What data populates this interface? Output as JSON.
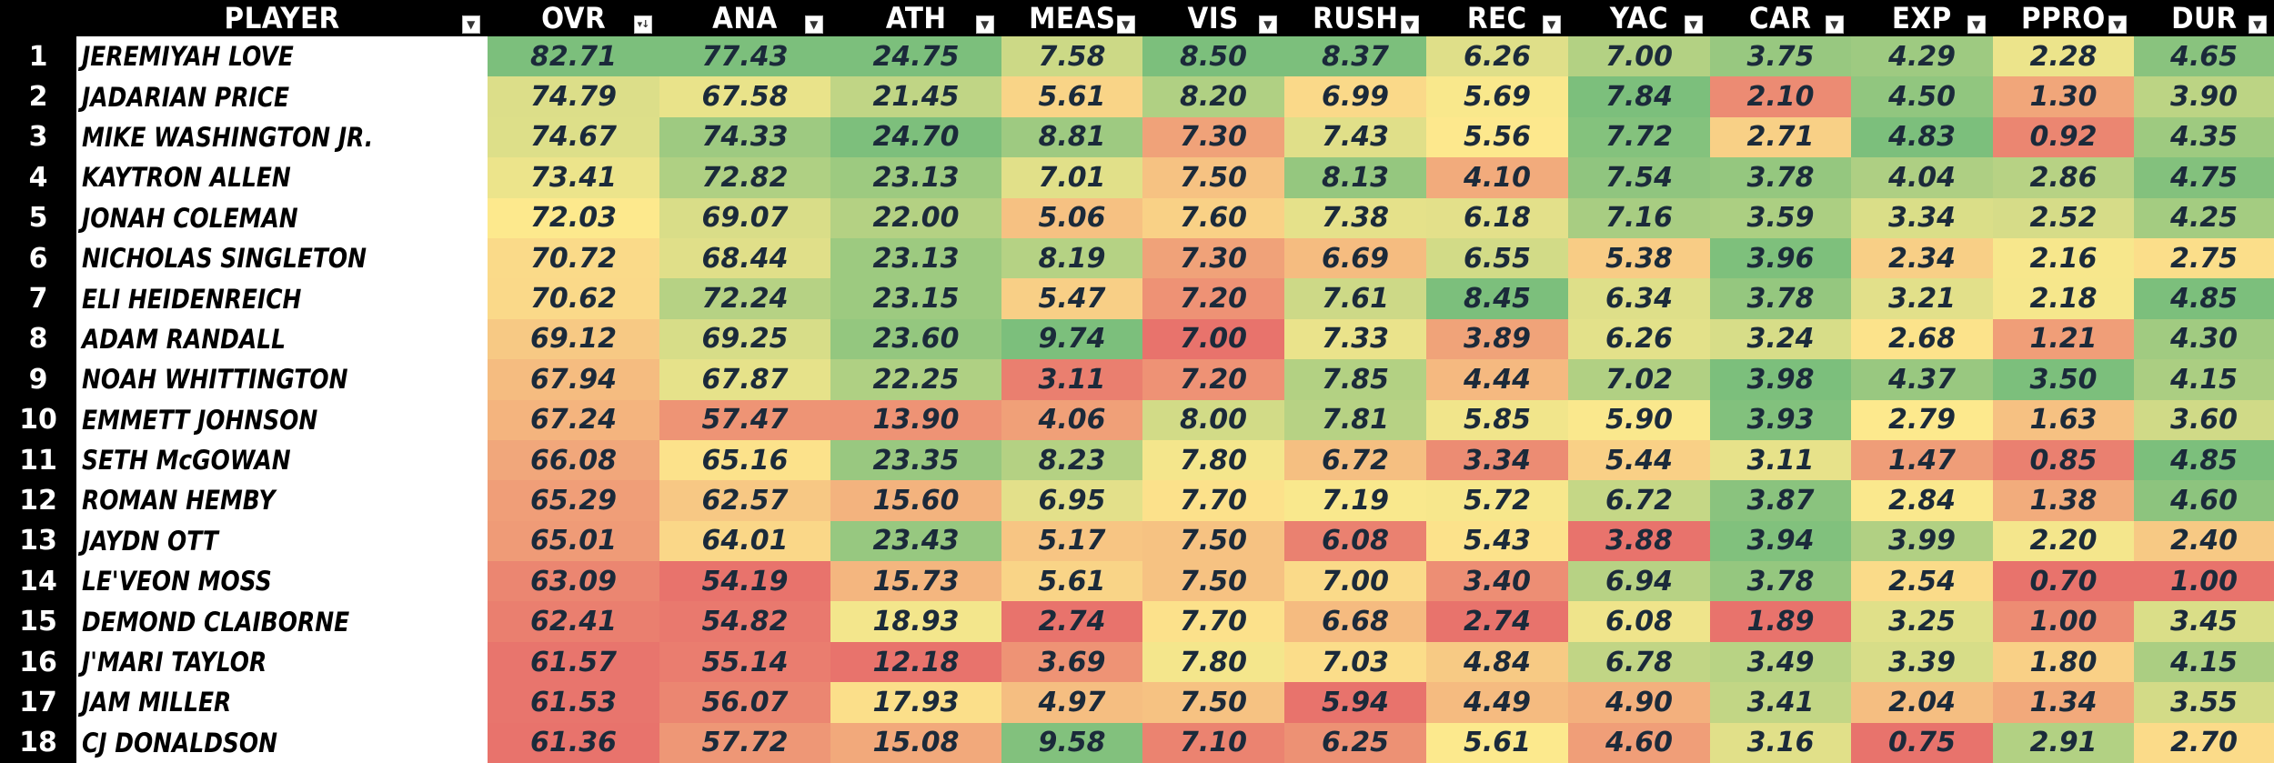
{
  "header": {
    "rank": "",
    "player": "PLAYER",
    "metrics": [
      "OVR",
      "ANA",
      "ATH",
      "MEAS",
      "VIS",
      "RUSH",
      "REC",
      "YAC",
      "CAR",
      "EXP",
      "PPRO",
      "DUR"
    ]
  },
  "filter_icons": {
    "default": "filter-dropdown-icon",
    "sorted": "sort-descending-filter-icon"
  },
  "colors": {
    "low": "#e8736c",
    "mid": "#fde98d",
    "high": "#7cbf7c",
    "header_bg": "#000000",
    "name_bg": "#ffffff"
  },
  "rows": [
    {
      "rank": "1",
      "name": "JEREMIYAH LOVE",
      "values": [
        "82.71",
        "77.43",
        "24.75",
        "7.58",
        "8.50",
        "8.37",
        "6.26",
        "7.00",
        "3.75",
        "4.29",
        "2.28",
        "4.65"
      ]
    },
    {
      "rank": "2",
      "name": "JADARIAN PRICE",
      "values": [
        "74.79",
        "67.58",
        "21.45",
        "5.61",
        "8.20",
        "6.99",
        "5.69",
        "7.84",
        "2.10",
        "4.50",
        "1.30",
        "3.90"
      ]
    },
    {
      "rank": "3",
      "name": "MIKE WASHINGTON JR.",
      "values": [
        "74.67",
        "74.33",
        "24.70",
        "8.81",
        "7.30",
        "7.43",
        "5.56",
        "7.72",
        "2.71",
        "4.83",
        "0.92",
        "4.35"
      ]
    },
    {
      "rank": "4",
      "name": "KAYTRON ALLEN",
      "values": [
        "73.41",
        "72.82",
        "23.13",
        "7.01",
        "7.50",
        "8.13",
        "4.10",
        "7.54",
        "3.78",
        "4.04",
        "2.86",
        "4.75"
      ]
    },
    {
      "rank": "5",
      "name": "JONAH COLEMAN",
      "values": [
        "72.03",
        "69.07",
        "22.00",
        "5.06",
        "7.60",
        "7.38",
        "6.18",
        "7.16",
        "3.59",
        "3.34",
        "2.52",
        "4.25"
      ]
    },
    {
      "rank": "6",
      "name": "NICHOLAS SINGLETON",
      "values": [
        "70.72",
        "68.44",
        "23.13",
        "8.19",
        "7.30",
        "6.69",
        "6.55",
        "5.38",
        "3.96",
        "2.34",
        "2.16",
        "2.75"
      ]
    },
    {
      "rank": "7",
      "name": "ELI HEIDENREICH",
      "values": [
        "70.62",
        "72.24",
        "23.15",
        "5.47",
        "7.20",
        "7.61",
        "8.45",
        "6.34",
        "3.78",
        "3.21",
        "2.18",
        "4.85"
      ]
    },
    {
      "rank": "8",
      "name": "ADAM RANDALL",
      "values": [
        "69.12",
        "69.25",
        "23.60",
        "9.74",
        "7.00",
        "7.33",
        "3.89",
        "6.26",
        "3.24",
        "2.68",
        "1.21",
        "4.30"
      ]
    },
    {
      "rank": "9",
      "name": "NOAH WHITTINGTON",
      "values": [
        "67.94",
        "67.87",
        "22.25",
        "3.11",
        "7.20",
        "7.85",
        "4.44",
        "7.02",
        "3.98",
        "4.37",
        "3.50",
        "4.15"
      ]
    },
    {
      "rank": "10",
      "name": "EMMETT JOHNSON",
      "values": [
        "67.24",
        "57.47",
        "13.90",
        "4.06",
        "8.00",
        "7.81",
        "5.85",
        "5.90",
        "3.93",
        "2.79",
        "1.63",
        "3.60"
      ]
    },
    {
      "rank": "11",
      "name": "SETH McGOWAN",
      "values": [
        "66.08",
        "65.16",
        "23.35",
        "8.23",
        "7.80",
        "6.72",
        "3.34",
        "5.44",
        "3.11",
        "1.47",
        "0.85",
        "4.85"
      ]
    },
    {
      "rank": "12",
      "name": "ROMAN HEMBY",
      "values": [
        "65.29",
        "62.57",
        "15.60",
        "6.95",
        "7.70",
        "7.19",
        "5.72",
        "6.72",
        "3.87",
        "2.84",
        "1.38",
        "4.60"
      ]
    },
    {
      "rank": "13",
      "name": "JAYDN OTT",
      "values": [
        "65.01",
        "64.01",
        "23.43",
        "5.17",
        "7.50",
        "6.08",
        "5.43",
        "3.88",
        "3.94",
        "3.99",
        "2.20",
        "2.40"
      ]
    },
    {
      "rank": "14",
      "name": "LE'VEON MOSS",
      "values": [
        "63.09",
        "54.19",
        "15.73",
        "5.61",
        "7.50",
        "7.00",
        "3.40",
        "6.94",
        "3.78",
        "2.54",
        "0.70",
        "1.00"
      ]
    },
    {
      "rank": "15",
      "name": "DEMOND CLAIBORNE",
      "values": [
        "62.41",
        "54.82",
        "18.93",
        "2.74",
        "7.70",
        "6.68",
        "2.74",
        "6.08",
        "1.89",
        "3.25",
        "1.00",
        "3.45"
      ]
    },
    {
      "rank": "16",
      "name": "J'MARI TAYLOR",
      "values": [
        "61.57",
        "55.14",
        "12.18",
        "3.69",
        "7.80",
        "7.03",
        "4.84",
        "6.78",
        "3.49",
        "3.39",
        "1.80",
        "4.15"
      ]
    },
    {
      "rank": "17",
      "name": "JAM MILLER",
      "values": [
        "61.53",
        "56.07",
        "17.93",
        "4.97",
        "7.50",
        "5.94",
        "4.49",
        "4.90",
        "3.41",
        "2.04",
        "1.34",
        "3.55"
      ]
    },
    {
      "rank": "18",
      "name": "CJ DONALDSON",
      "values": [
        "61.36",
        "57.72",
        "15.08",
        "9.58",
        "7.10",
        "6.25",
        "5.61",
        "4.60",
        "3.16",
        "0.75",
        "2.91",
        "2.70"
      ]
    }
  ]
}
